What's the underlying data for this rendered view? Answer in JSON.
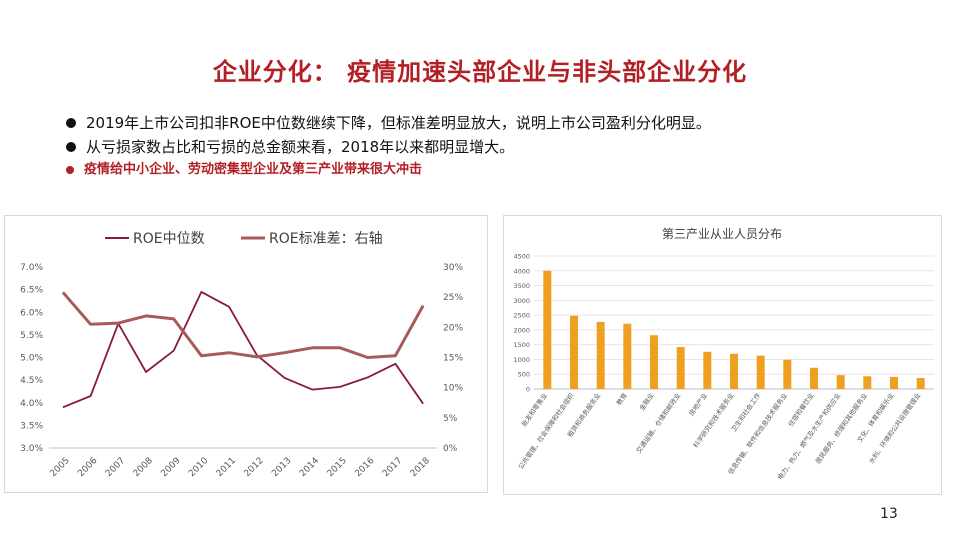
{
  "slide": {
    "title": "企业分化： 疫情加速头部企业与非头部企业分化",
    "bullets": [
      "2019年上市公司扣非ROE中位数继续下降，但标准差明显放大，说明上市公司盈利分化明显。",
      "从亏损家数占比和亏损的总金额来看，2018年以来都明显增大。"
    ],
    "highlight": "疫情给中小企业、劳动密集型企业及第三产业带来很大冲击",
    "page_number": "13"
  },
  "chart_data": [
    {
      "type": "line",
      "title": "",
      "x": [
        "2005",
        "2006",
        "2007",
        "2008",
        "2009",
        "2010",
        "2011",
        "2012",
        "2013",
        "2014",
        "2015",
        "2016",
        "2017",
        "2018"
      ],
      "series": [
        {
          "name": "ROE中位数",
          "axis": "left",
          "color": "#8b1a3a",
          "values": [
            0.039,
            0.0415,
            0.0575,
            0.0468,
            0.0515,
            0.0645,
            0.0612,
            0.0505,
            0.0455,
            0.0429,
            0.0435,
            0.0456,
            0.0486,
            0.0398
          ]
        },
        {
          "name": "ROE标准差：右轴",
          "axis": "right",
          "color": "#a85a5a",
          "values": [
            0.258,
            0.205,
            0.207,
            0.219,
            0.214,
            0.153,
            0.158,
            0.151,
            0.158,
            0.166,
            0.166,
            0.15,
            0.153,
            0.236
          ]
        }
      ],
      "y_left": {
        "min": 0.03,
        "max": 0.07,
        "ticks": [
          "7.0%",
          "6.5%",
          "6.0%",
          "5.5%",
          "5.0%",
          "4.5%",
          "4.0%",
          "3.5%",
          "3.0%"
        ]
      },
      "y_right": {
        "min": 0,
        "max": 0.3,
        "ticks": [
          "30%",
          "25%",
          "20%",
          "15%",
          "10%",
          "5%",
          "0%"
        ]
      },
      "legend_position": "top",
      "grid": false
    },
    {
      "type": "bar",
      "title": "第三产业从业人员分布",
      "color": "#f0a020",
      "categories": [
        "批发和零售业",
        "公共管理、社会保障和社会组织",
        "租赁和商务服务业",
        "教育",
        "金融业",
        "交通运输、仓储和邮政业",
        "房地产业",
        "科学研究和技术服务业",
        "卫生和社会工作",
        "信息传输、软件和信息技术服务业",
        "住宿和餐饮业",
        "电力、热力、燃气及水生产和供应业",
        "居民服务、修理和其他服务业",
        "文化、体育和娱乐业",
        "水利、环境和公共设施管理业"
      ],
      "values": [
        4000,
        2480,
        2270,
        2210,
        1820,
        1420,
        1260,
        1190,
        1130,
        990,
        720,
        470,
        430,
        410,
        370
      ],
      "y": {
        "min": 0,
        "max": 4500,
        "ticks": [
          "4500",
          "4000",
          "3500",
          "3000",
          "2500",
          "2000",
          "1500",
          "1000",
          "500",
          "0"
        ]
      },
      "grid": true
    }
  ]
}
